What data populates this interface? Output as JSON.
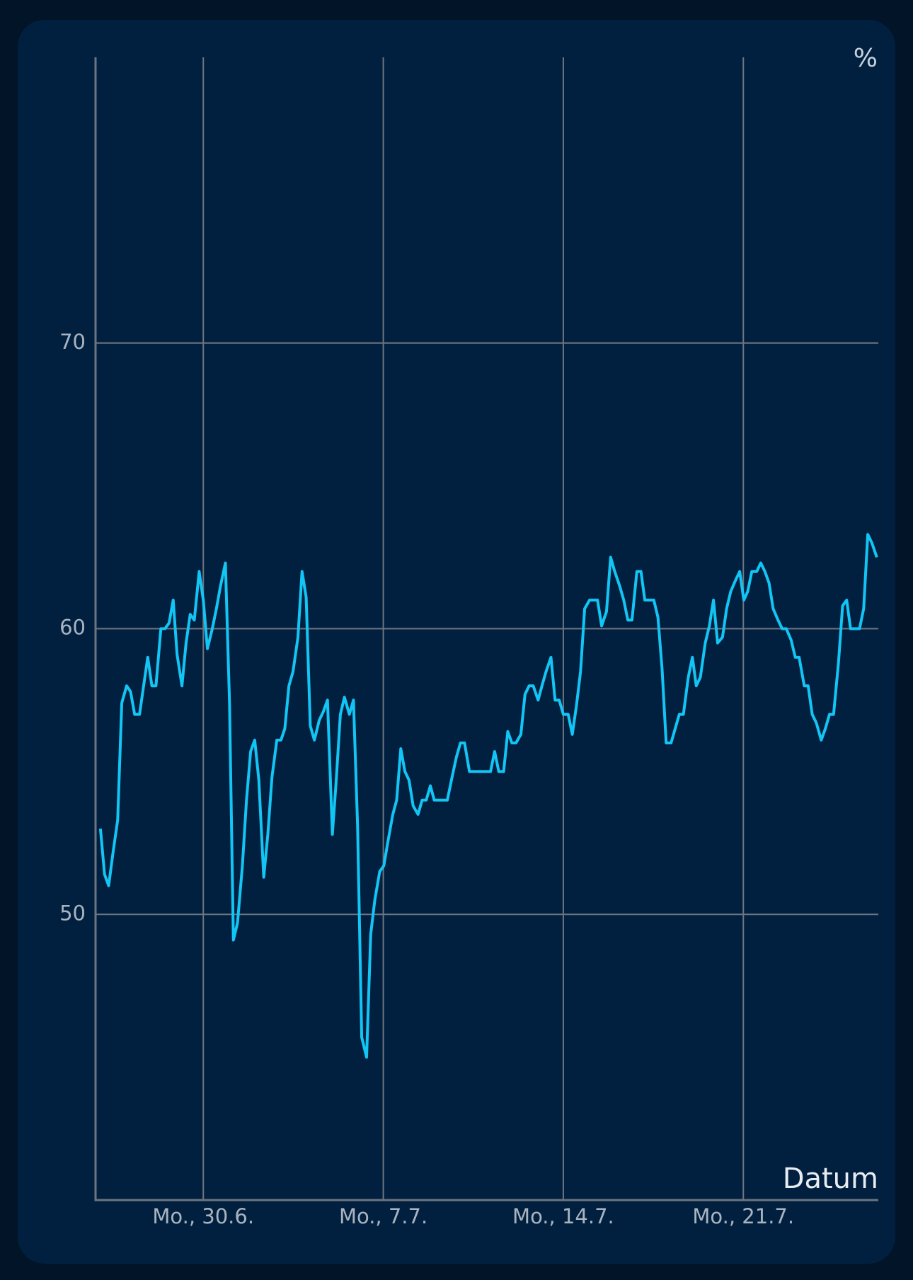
{
  "chart_data": {
    "type": "line",
    "y_label": "%",
    "x_label": "Datum",
    "xlim": [
      -4.19,
      26.25
    ],
    "ylim": [
      40,
      80
    ],
    "xticks": [
      {
        "value": 0,
        "label": "Mo., 30.6."
      },
      {
        "value": 7,
        "label": "Mo., 7.7."
      },
      {
        "value": 14,
        "label": "Mo., 14.7."
      },
      {
        "value": 21,
        "label": "Mo., 21.7."
      }
    ],
    "yticks": [
      50,
      60,
      70
    ],
    "grid": true,
    "series": [
      {
        "color": "#12c5f5",
        "x": [
          -4.0,
          -3.84,
          -3.68,
          -3.52,
          -3.33,
          -3.17,
          -2.98,
          -2.83,
          -2.67,
          -2.48,
          -2.32,
          -2.16,
          -2.0,
          -1.84,
          -1.65,
          -1.49,
          -1.33,
          -1.17,
          -1.02,
          -0.83,
          -0.67,
          -0.51,
          -0.35,
          -0.16,
          0.0,
          0.16,
          0.35,
          0.51,
          0.67,
          0.86,
          1.02,
          1.17,
          1.33,
          1.52,
          1.68,
          1.84,
          2.0,
          2.16,
          2.35,
          2.51,
          2.67,
          2.86,
          3.02,
          3.17,
          3.33,
          3.49,
          3.68,
          3.84,
          4.0,
          4.16,
          4.32,
          4.51,
          4.67,
          4.83,
          5.02,
          5.17,
          5.33,
          5.49,
          5.68,
          5.84,
          6.0,
          6.16,
          6.35,
          6.51,
          6.67,
          6.86,
          7.02,
          7.17,
          7.37,
          7.52,
          7.68,
          7.84,
          8.0,
          8.16,
          8.35,
          8.51,
          8.67,
          8.83,
          8.98,
          9.17,
          9.33,
          9.49,
          9.65,
          9.84,
          10.0,
          10.16,
          10.35,
          10.51,
          10.67,
          10.83,
          11.02,
          11.17,
          11.33,
          11.49,
          11.68,
          11.84,
          12.0,
          12.16,
          12.35,
          12.51,
          12.67,
          12.83,
          13.02,
          13.17,
          13.33,
          13.52,
          13.68,
          13.84,
          14.0,
          14.19,
          14.35,
          14.51,
          14.67,
          14.83,
          15.02,
          15.17,
          15.33,
          15.49,
          15.68,
          15.84,
          16.0,
          16.19,
          16.35,
          16.51,
          16.67,
          16.86,
          17.02,
          17.17,
          17.33,
          17.52,
          17.68,
          17.84,
          18.0,
          18.19,
          18.35,
          18.51,
          18.67,
          18.86,
          19.02,
          19.17,
          19.33,
          19.52,
          19.68,
          19.84,
          20.0,
          20.19,
          20.35,
          20.51,
          20.7,
          20.86,
          21.02,
          21.17,
          21.33,
          21.52,
          21.68,
          21.84,
          22.0,
          22.16,
          22.35,
          22.51,
          22.67,
          22.86,
          23.02,
          23.17,
          23.37,
          23.52,
          23.68,
          23.84,
          24.03,
          24.19,
          24.35,
          24.51,
          24.7,
          24.86,
          25.02,
          25.17,
          25.33,
          25.52,
          25.68,
          25.84,
          26.0,
          26.19
        ],
        "values": [
          53.0,
          51.4,
          51.0,
          52.1,
          53.3,
          57.4,
          58.0,
          57.8,
          57.0,
          57.0,
          58.0,
          59.0,
          58.0,
          58.0,
          60.0,
          60.0,
          60.2,
          61.0,
          59.1,
          58.0,
          59.5,
          60.5,
          60.3,
          62.0,
          61.0,
          59.3,
          60.0,
          60.7,
          61.5,
          62.3,
          57.4,
          49.1,
          49.7,
          51.7,
          54.0,
          55.7,
          56.1,
          54.7,
          51.3,
          52.8,
          54.8,
          56.1,
          56.1,
          56.5,
          58.0,
          58.5,
          59.7,
          62.0,
          61.1,
          56.6,
          56.1,
          56.8,
          57.1,
          57.5,
          52.8,
          54.7,
          57.0,
          57.6,
          57.0,
          57.5,
          53.1,
          45.7,
          45.0,
          49.3,
          50.5,
          51.5,
          51.7,
          52.5,
          53.5,
          54.0,
          55.8,
          55.0,
          54.7,
          53.8,
          53.5,
          54.0,
          54.0,
          54.5,
          54.0,
          54.0,
          54.0,
          54.0,
          54.7,
          55.5,
          56.0,
          56.0,
          55.0,
          55.0,
          55.0,
          55.0,
          55.0,
          55.0,
          55.7,
          55.0,
          55.0,
          56.4,
          56.0,
          56.0,
          56.3,
          57.7,
          58.0,
          58.0,
          57.5,
          58.0,
          58.5,
          59.0,
          57.5,
          57.5,
          57.0,
          57.0,
          56.3,
          57.3,
          58.5,
          60.7,
          61.0,
          61.0,
          61.0,
          60.1,
          60.6,
          62.5,
          62.0,
          61.5,
          61.0,
          60.3,
          60.3,
          62.0,
          62.0,
          61.0,
          61.0,
          61.0,
          60.4,
          58.6,
          56.0,
          56.0,
          56.5,
          57.0,
          57.0,
          58.3,
          59.0,
          58.0,
          58.3,
          59.5,
          60.1,
          61.0,
          59.5,
          59.7,
          60.7,
          61.3,
          61.7,
          62.0,
          61.0,
          61.3,
          62.0,
          62.0,
          62.3,
          62.0,
          61.6,
          60.7,
          60.3,
          60.0,
          60.0,
          59.6,
          59.0,
          59.0,
          58.0,
          58.0,
          57.0,
          56.7,
          56.1,
          56.5,
          57.0,
          57.0,
          58.8,
          60.8,
          61.0,
          60.0,
          60.0,
          60.0,
          60.7,
          63.3,
          63.0,
          62.5
        ]
      }
    ]
  }
}
